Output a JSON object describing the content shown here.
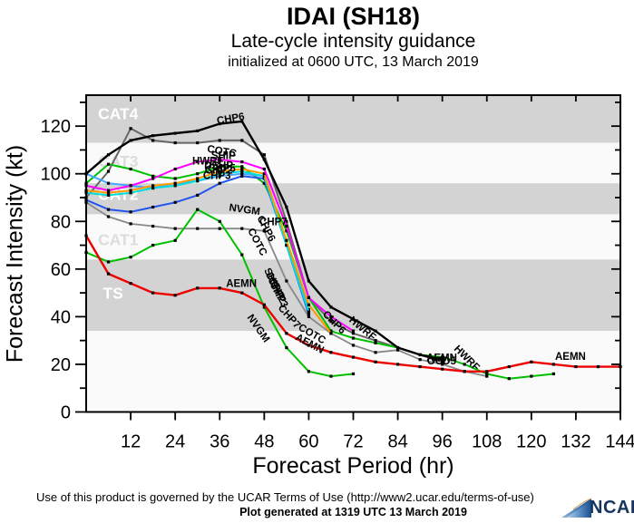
{
  "header": {
    "title": "IDAI (SH18)",
    "subtitle": "Late-cycle intensity guidance",
    "initialization": "initialized at 0600 UTC, 13 March 2019"
  },
  "footer": {
    "terms": "Use of this product is governed by the UCAR Terms of Use (http://www2.ucar.edu/terms-of-use)",
    "generated": "Plot generated at 1319 UTC   13 March 2019",
    "logo_text": "NCAR",
    "logo_color": "#16355f",
    "logo_gradient": [
      "#dce9f5",
      "#6699cc",
      "#1a4e8f"
    ]
  },
  "chart_data": {
    "type": "line",
    "title": "IDAI (SH18)",
    "xlabel": "Forecast Period (hr)",
    "ylabel": "Forecast Intensity (kt)",
    "xlim": [
      0,
      144
    ],
    "ylim": [
      0,
      133
    ],
    "xticks": [
      12,
      24,
      36,
      48,
      60,
      72,
      84,
      96,
      108,
      120,
      132,
      144
    ],
    "yticks_major": [
      0,
      20,
      40,
      60,
      80,
      100,
      120
    ],
    "yticks_minor": [
      10,
      30,
      50,
      70,
      90,
      110,
      130
    ],
    "grid": false,
    "band_gray": "#d3d3d3",
    "band_white": "#fafafa",
    "bands": [
      {
        "label": "CAT4",
        "from": 113,
        "to": 133,
        "shade": "gray",
        "label_color": "#ffffff",
        "label_hr": 3.2,
        "label_kt": 123
      },
      {
        "label": "CAT3",
        "from": 96,
        "to": 113,
        "shade": "white",
        "label_color": "#dcdcdc",
        "label_hr": 3.2,
        "label_kt": 103
      },
      {
        "label": "CAT2",
        "from": 83,
        "to": 96,
        "shade": "gray",
        "label_color": "#ffffff",
        "label_hr": 3.2,
        "label_kt": 89
      },
      {
        "label": "CAT1",
        "from": 64,
        "to": 83,
        "shade": "white",
        "label_color": "#dcdcdc",
        "label_hr": 3.2,
        "label_kt": 70
      },
      {
        "label": "TS",
        "from": 34,
        "to": 64,
        "shade": "gray",
        "label_color": "#ffffff",
        "label_hr": 4.5,
        "label_kt": 47.5
      },
      {
        "label": "",
        "from": 0,
        "to": 34,
        "shade": "white",
        "label_color": "#ffffff",
        "label_hr": 0,
        "label_kt": 10
      }
    ],
    "series": [
      {
        "name": "CHP7",
        "color": "#888888",
        "width": 1.8,
        "points": [
          [
            0,
            88
          ],
          [
            6,
            82
          ],
          [
            12,
            79
          ],
          [
            18,
            78
          ],
          [
            24,
            77
          ],
          [
            30,
            77
          ],
          [
            36,
            77
          ],
          [
            42,
            77
          ],
          [
            48,
            76
          ],
          [
            54,
            55
          ],
          [
            60,
            40
          ],
          [
            66,
            33
          ],
          [
            72,
            28
          ],
          [
            78,
            25
          ],
          [
            84,
            26
          ],
          [
            90,
            22
          ],
          [
            96,
            20
          ],
          [
            102,
            17
          ],
          [
            108,
            15
          ]
        ]
      },
      {
        "name": "COTC",
        "color": "#666666",
        "width": 2,
        "points": [
          [
            0,
            90
          ],
          [
            6,
            101
          ],
          [
            12,
            119
          ],
          [
            18,
            114
          ],
          [
            24,
            113
          ],
          [
            30,
            113
          ],
          [
            36,
            114
          ],
          [
            42,
            114
          ],
          [
            48,
            108
          ],
          [
            54,
            80
          ],
          [
            60,
            48
          ],
          [
            66,
            38
          ],
          [
            72,
            33
          ],
          [
            78,
            30
          ],
          [
            84,
            27
          ],
          [
            90,
            24
          ],
          [
            96,
            21
          ]
        ]
      },
      {
        "name": "",
        "color": "#00c000",
        "width": 2,
        "points": [
          [
            0,
            96
          ],
          [
            6,
            104
          ],
          [
            12,
            102
          ],
          [
            18,
            99
          ],
          [
            24,
            98
          ],
          [
            30,
            100
          ],
          [
            36,
            103
          ],
          [
            42,
            103
          ],
          [
            48,
            96
          ],
          [
            54,
            76
          ],
          [
            60,
            48
          ],
          [
            66,
            34
          ],
          [
            72,
            31
          ],
          [
            78,
            29
          ],
          [
            84,
            27
          ],
          [
            90,
            24
          ],
          [
            96,
            23
          ],
          [
            102,
            20
          ],
          [
            108,
            16
          ],
          [
            114,
            14
          ],
          [
            120,
            15
          ],
          [
            126,
            16
          ]
        ]
      },
      {
        "name": "NVGM",
        "color": "#00c000",
        "width": 2,
        "points": [
          [
            0,
            67
          ],
          [
            6,
            63
          ],
          [
            12,
            65
          ],
          [
            18,
            70
          ],
          [
            24,
            72
          ],
          [
            30,
            85
          ],
          [
            36,
            80
          ],
          [
            42,
            66
          ],
          [
            48,
            44
          ],
          [
            54,
            27
          ],
          [
            60,
            17
          ],
          [
            66,
            15
          ],
          [
            72,
            16
          ]
        ]
      },
      {
        "name": "CHP3",
        "color": "#2255ee",
        "width": 2,
        "points": [
          [
            0,
            89
          ],
          [
            6,
            85
          ],
          [
            12,
            84
          ],
          [
            18,
            86
          ],
          [
            24,
            88
          ],
          [
            30,
            91
          ],
          [
            36,
            96
          ],
          [
            42,
            99
          ],
          [
            48,
            98
          ],
          [
            54,
            70
          ],
          [
            60,
            41
          ]
        ]
      },
      {
        "name": "CHP2",
        "color": "#44aaff",
        "width": 2,
        "points": [
          [
            0,
            100
          ],
          [
            6,
            96
          ],
          [
            12,
            95
          ],
          [
            18,
            94
          ],
          [
            24,
            96
          ],
          [
            30,
            97
          ],
          [
            36,
            99
          ],
          [
            42,
            100
          ],
          [
            48,
            99
          ],
          [
            54,
            72
          ],
          [
            60,
            43
          ]
        ]
      },
      {
        "name": "DSHP",
        "color": "#00dddd",
        "width": 2,
        "points": [
          [
            0,
            92
          ],
          [
            6,
            91
          ],
          [
            12,
            92
          ],
          [
            18,
            94
          ],
          [
            24,
            95
          ],
          [
            30,
            97
          ],
          [
            36,
            100
          ],
          [
            42,
            101
          ],
          [
            48,
            99
          ],
          [
            54,
            70
          ],
          [
            60,
            42
          ]
        ]
      },
      {
        "name": "SHIP",
        "color": "#ff9900",
        "width": 2,
        "points": [
          [
            0,
            93
          ],
          [
            6,
            92
          ],
          [
            12,
            93
          ],
          [
            18,
            95
          ],
          [
            24,
            96
          ],
          [
            30,
            98
          ],
          [
            36,
            101
          ],
          [
            42,
            102
          ],
          [
            48,
            100
          ],
          [
            54,
            72
          ],
          [
            60,
            45
          ],
          [
            66,
            33
          ]
        ]
      },
      {
        "name": "HWRF",
        "color": "#ff00ff",
        "width": 2,
        "points": [
          [
            0,
            95
          ],
          [
            6,
            93
          ],
          [
            12,
            95
          ],
          [
            18,
            98
          ],
          [
            24,
            102
          ],
          [
            30,
            105
          ],
          [
            36,
            106
          ],
          [
            42,
            105
          ],
          [
            48,
            102
          ],
          [
            54,
            78
          ],
          [
            60,
            48
          ],
          [
            66,
            40
          ],
          [
            72,
            34
          ]
        ]
      },
      {
        "name": "CHP6",
        "color": "#000000",
        "width": 2.4,
        "points": [
          [
            0,
            100
          ],
          [
            6,
            108
          ],
          [
            12,
            114
          ],
          [
            18,
            116
          ],
          [
            24,
            117
          ],
          [
            30,
            118
          ],
          [
            36,
            121
          ],
          [
            42,
            122
          ],
          [
            48,
            106
          ],
          [
            54,
            86
          ],
          [
            60,
            55
          ],
          [
            66,
            44
          ],
          [
            72,
            39
          ],
          [
            78,
            34
          ],
          [
            84,
            27
          ],
          [
            90,
            24
          ],
          [
            96,
            22
          ]
        ]
      },
      {
        "name": "AEMN",
        "color": "#ee0000",
        "width": 2.4,
        "points": [
          [
            0,
            74
          ],
          [
            6,
            58
          ],
          [
            12,
            54
          ],
          [
            18,
            50
          ],
          [
            24,
            49
          ],
          [
            30,
            52
          ],
          [
            36,
            52
          ],
          [
            42,
            50
          ],
          [
            48,
            45
          ],
          [
            54,
            33
          ],
          [
            60,
            28
          ],
          [
            66,
            25
          ],
          [
            72,
            23
          ],
          [
            78,
            21
          ],
          [
            84,
            20
          ],
          [
            90,
            19
          ],
          [
            96,
            18
          ],
          [
            102,
            17
          ],
          [
            108,
            17
          ],
          [
            114,
            19
          ],
          [
            120,
            21
          ],
          [
            126,
            20
          ],
          [
            132,
            19
          ],
          [
            138,
            19
          ],
          [
            144,
            19
          ]
        ]
      }
    ],
    "annotations": [
      {
        "text": "CHP6",
        "hr": 35.4,
        "kt": 120.8,
        "rot": -10
      },
      {
        "text": "COTC",
        "hr": 32.5,
        "kt": 109.2,
        "rot": 10
      },
      {
        "text": "HWRF",
        "hr": 28.6,
        "kt": 103.9,
        "rot": 0
      },
      {
        "text": "SHIP",
        "hr": 33.7,
        "kt": 106.2,
        "rot": 0
      },
      {
        "text": "DSHP",
        "hr": 31.8,
        "kt": 102.0,
        "rot": 0
      },
      {
        "text": "CHP5",
        "hr": 32.8,
        "kt": 100.8,
        "rot": 0
      },
      {
        "text": "CHP2",
        "hr": 32.0,
        "kt": 100.1,
        "rot": 0
      },
      {
        "text": "CHP3",
        "hr": 31.5,
        "kt": 97.8,
        "rot": 0
      },
      {
        "text": "NVGM",
        "hr": 38.4,
        "kt": 84.5,
        "rot": 8
      },
      {
        "text": "CHP7",
        "hr": 46.7,
        "kt": 78.4,
        "rot": 0
      },
      {
        "text": "AEMN",
        "hr": 37.7,
        "kt": 52.5,
        "rot": 0
      },
      {
        "text": "CHP6",
        "hr": 46.0,
        "kt": 81.5,
        "rot": 62
      },
      {
        "text": "COTC",
        "hr": 43.5,
        "kt": 76.2,
        "rot": 62
      },
      {
        "text": "SHIP",
        "hr": 47.9,
        "kt": 59.5,
        "rot": 62
      },
      {
        "text": "DSHP",
        "hr": 48.4,
        "kt": 57.6,
        "rot": 62
      },
      {
        "text": "CHP2",
        "hr": 48.9,
        "kt": 55.7,
        "rot": 62
      },
      {
        "text": "CHP3",
        "hr": 49.4,
        "kt": 53.8,
        "rot": 62
      },
      {
        "text": "NVGM",
        "hr": 43.3,
        "kt": 39.7,
        "rot": 55
      },
      {
        "text": "CHP7",
        "hr": 51.6,
        "kt": 43.5,
        "rot": 48
      },
      {
        "text": "COTC",
        "hr": 57.0,
        "kt": 34.7,
        "rot": 30
      },
      {
        "text": "AEMN",
        "hr": 56.2,
        "kt": 30.5,
        "rot": 28
      },
      {
        "text": "CHP6",
        "hr": 63.6,
        "kt": 40.8,
        "rot": 45
      },
      {
        "text": "HWRF",
        "hr": 70.7,
        "kt": 38.2,
        "rot": 40
      },
      {
        "text": "HWRF",
        "hr": 99.0,
        "kt": 26.3,
        "rot": 45
      },
      {
        "text": "AEMN",
        "hr": 91.7,
        "kt": 21.4,
        "rot": 0
      },
      {
        "text": "OCD5",
        "hr": 91.9,
        "kt": 19.9,
        "rot": 0
      },
      {
        "text": "AEMN",
        "hr": 126.4,
        "kt": 21.8,
        "rot": 0
      }
    ]
  }
}
